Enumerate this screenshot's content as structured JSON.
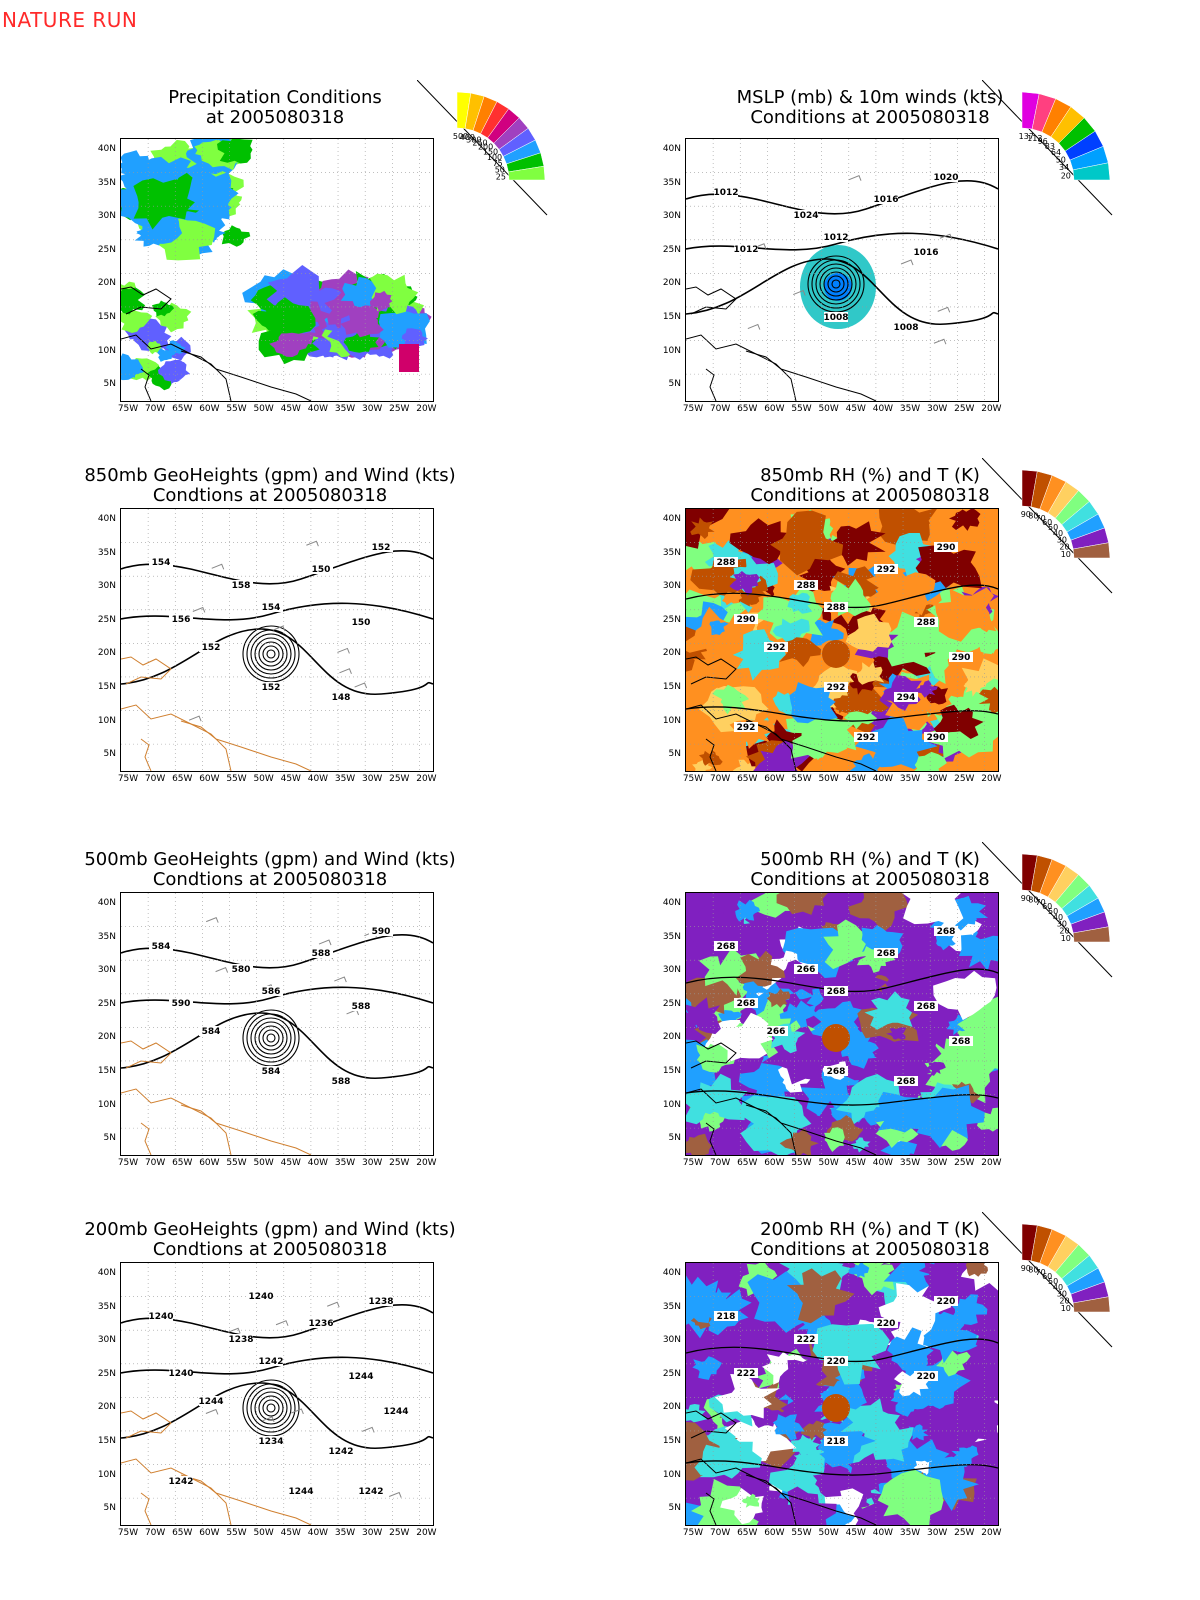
{
  "header": {
    "label": "NATURE RUN"
  },
  "axes": {
    "lat_labels": [
      "40N",
      "35N",
      "30N",
      "25N",
      "20N",
      "15N",
      "10N",
      "5N"
    ],
    "lon_labels": [
      "75W",
      "70W",
      "65W",
      "60W",
      "55W",
      "50W",
      "45W",
      "40W",
      "35W",
      "30W",
      "25W",
      "20W"
    ]
  },
  "panels": [
    {
      "id": "precip",
      "title_line1": "Precipitation Conditions",
      "title_line2": "at 2005080318",
      "legend": [
        "500",
        "400",
        "300",
        "250",
        "200",
        "150",
        "100",
        "75",
        "50",
        "25"
      ],
      "legend_colors": [
        "#ffff00",
        "#ffc000",
        "#ff8000",
        "#ff3030",
        "#d00080",
        "#a040c0",
        "#6060ff",
        "#20a0ff",
        "#00c000",
        "#80ff40"
      ],
      "contour_labels": []
    },
    {
      "id": "mslp",
      "title_line1": "MSLP (mb) & 10m winds (kts)",
      "title_line2": "Conditions at 2005080318",
      "legend": [
        "137",
        "113",
        "96",
        "83",
        "64",
        "50",
        "34",
        "20"
      ],
      "legend_colors": [
        "#e000e0",
        "#ff4080",
        "#ff8000",
        "#ffc000",
        "#00c000",
        "#0040ff",
        "#00a0ff",
        "#00c8c8"
      ],
      "contour_labels": [
        "1012",
        "1024",
        "1016",
        "1020",
        "1012",
        "1012",
        "1016",
        "1008",
        "1008"
      ]
    },
    {
      "id": "gh850",
      "title_line1": "850mb GeoHeights (gpm) and Wind (kts)",
      "title_line2": "Condtions at 2005080318",
      "contour_labels": [
        "154",
        "158",
        "150",
        "152",
        "156",
        "154",
        "150",
        "152",
        "148",
        "152"
      ]
    },
    {
      "id": "rh850",
      "title_line1": "850mb RH (%) and T (K)",
      "title_line2": "Conditions at 2005080318",
      "legend": [
        "90",
        "80",
        "70",
        "60",
        "50",
        "40",
        "30",
        "20",
        "10"
      ],
      "legend_colors": [
        "#800000",
        "#c05000",
        "#ff9020",
        "#ffd060",
        "#80ff80",
        "#40e0e0",
        "#20a0ff",
        "#8020c0",
        "#a06040"
      ],
      "contour_labels": [
        "288",
        "288",
        "292",
        "290",
        "290",
        "288",
        "288",
        "292",
        "294",
        "292",
        "290",
        "292",
        "292",
        "290"
      ]
    },
    {
      "id": "gh500",
      "title_line1": "500mb GeoHeights (gpm) and Wind (kts)",
      "title_line2": "Condtions at 2005080318",
      "contour_labels": [
        "584",
        "580",
        "588",
        "590",
        "590",
        "586",
        "588",
        "584",
        "588",
        "584"
      ]
    },
    {
      "id": "rh500",
      "title_line1": "500mb RH (%) and T (K)",
      "title_line2": "Conditions at 2005080318",
      "legend": [
        "90",
        "80",
        "70",
        "60",
        "50",
        "40",
        "30",
        "20",
        "10"
      ],
      "legend_colors": [
        "#800000",
        "#c05000",
        "#ff9020",
        "#ffd060",
        "#80ff80",
        "#40e0e0",
        "#20a0ff",
        "#8020c0",
        "#a06040"
      ],
      "contour_labels": [
        "268",
        "266",
        "268",
        "268",
        "268",
        "268",
        "268",
        "268",
        "268",
        "266",
        "268"
      ]
    },
    {
      "id": "gh200",
      "title_line1": "200mb GeoHeights (gpm) and Wind (kts)",
      "title_line2": "Condtions at 2005080318",
      "contour_labels": [
        "1240",
        "1238",
        "1236",
        "1238",
        "1240",
        "1242",
        "1244",
        "1234",
        "1242",
        "1244",
        "1244",
        "1244",
        "1242",
        "1242",
        "1240"
      ]
    },
    {
      "id": "rh200",
      "title_line1": "200mb RH (%) and T (K)",
      "title_line2": "Conditions at 2005080318",
      "legend": [
        "90",
        "80",
        "70",
        "60",
        "50",
        "40",
        "30",
        "20",
        "10"
      ],
      "legend_colors": [
        "#800000",
        "#c05000",
        "#ff9020",
        "#ffd060",
        "#80ff80",
        "#40e0e0",
        "#20a0ff",
        "#8020c0",
        "#a06040"
      ],
      "contour_labels": [
        "218",
        "222",
        "220",
        "220",
        "222",
        "220",
        "220",
        "218"
      ]
    }
  ]
}
